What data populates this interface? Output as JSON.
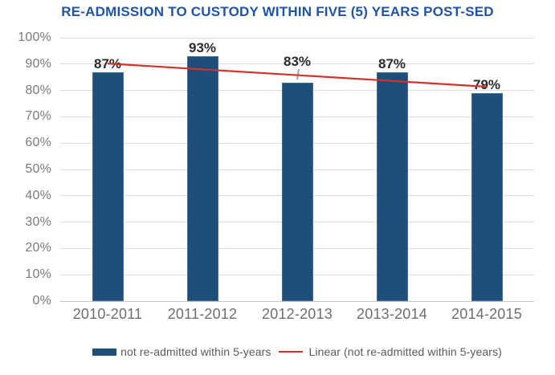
{
  "chart_data": {
    "type": "bar",
    "title": "RE-ADMISSION TO CUSTODY WITHIN FIVE (5) YEARS POST-SED",
    "categories": [
      "2010-2011",
      "2011-2012",
      "2012-2013",
      "2013-2014",
      "2014-2015"
    ],
    "series": [
      {
        "name": "not re-admitted within 5-years",
        "type": "bar",
        "color": "#1F4E79",
        "border_color": "#3F6E9E",
        "values": [
          87,
          93,
          83,
          87,
          79
        ],
        "data_labels": [
          "87%",
          "93%",
          "83%",
          "87%",
          "79%"
        ]
      }
    ],
    "trendline": {
      "name": "Linear (not re-admitted within 5-years)",
      "color": "#D2332B",
      "start_value": 90.2,
      "end_value": 81.4
    },
    "ylim": [
      0,
      100
    ],
    "y_ticks": [
      "0%",
      "10%",
      "20%",
      "30%",
      "40%",
      "50%",
      "60%",
      "70%",
      "80%",
      "90%",
      "100%"
    ],
    "grid": true,
    "legend_position": "bottom",
    "label_adjustments": {
      "2": {
        "dy": -16,
        "leader": true
      }
    }
  },
  "colors": {
    "title_text": "#2154A3",
    "grid_line": "#DCDCDC",
    "axis_line": "#C6C6C6",
    "y_tick_text": "#7B7B7B",
    "x_tick_text": "#6E6E6E",
    "data_label_text": "#2B2B2B",
    "legend_text": "#5A5A5A",
    "leader_line": "#A0A0A0",
    "background": "#FFFFFF"
  }
}
